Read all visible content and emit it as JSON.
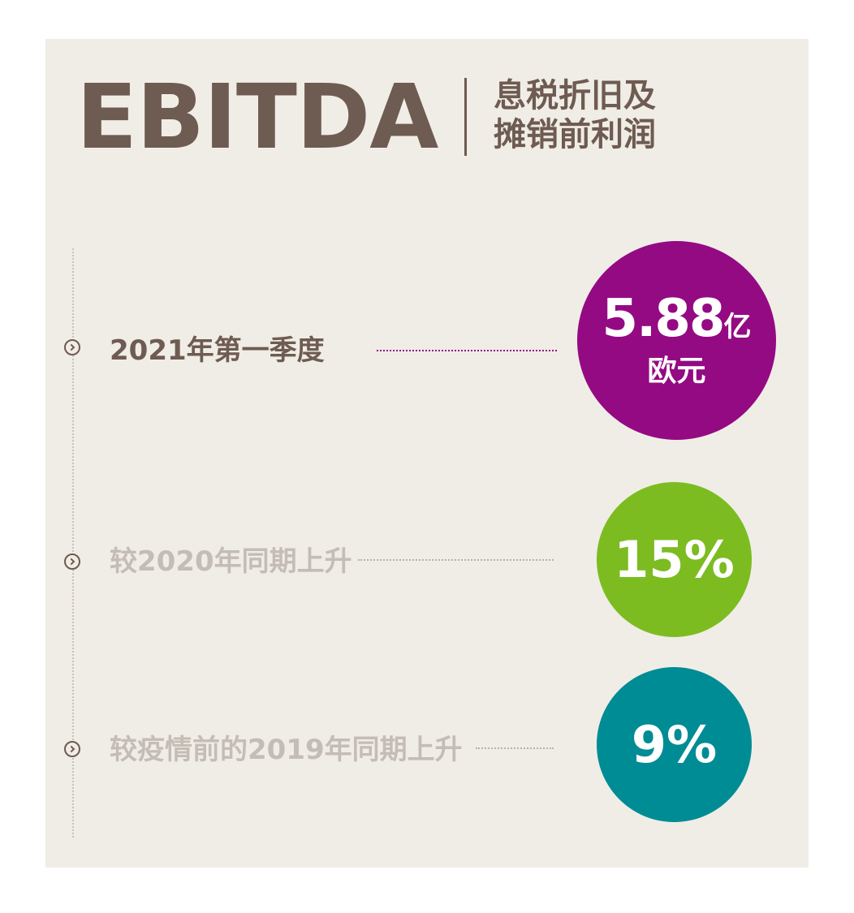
{
  "header": {
    "title": "EBITDA",
    "subtitle_line1": "息税折旧及",
    "subtitle_line2": "摊销前利润"
  },
  "items": [
    {
      "label": "2021年第一季度",
      "value": "5.88",
      "value_unit": "亿",
      "value_line2": "欧元",
      "color": "#940a83"
    },
    {
      "label": "较2020年同期上升",
      "value": "15%",
      "color": "#7cbc21"
    },
    {
      "label": "较疫情前的2019年同期上升",
      "value": "9%",
      "color": "#008c95"
    }
  ],
  "colors": {
    "text_brown": "#6e5b51",
    "muted_text": "#c4bdb5",
    "panel_bg": "#f0ede6"
  },
  "icons": {
    "bullet": "chevron-circle-right-icon"
  }
}
